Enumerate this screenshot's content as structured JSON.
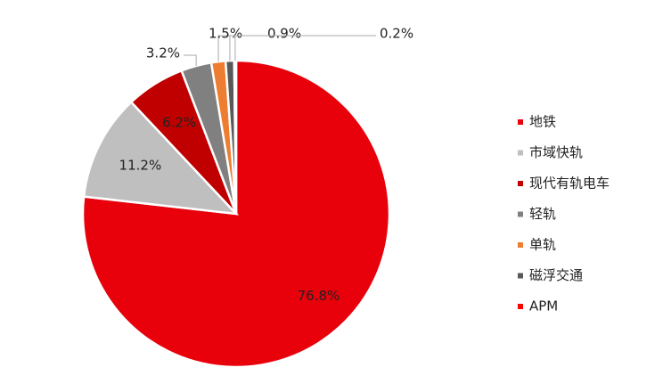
{
  "chart_data": {
    "type": "pie",
    "categories": [
      "地铁",
      "市域快轨",
      "现代有轨电车",
      "轻轨",
      "单轨",
      "磁浮交通",
      "APM"
    ],
    "values": [
      76.8,
      11.2,
      6.2,
      3.2,
      1.5,
      0.9,
      0.2
    ],
    "value_labels": [
      "76.8%",
      "11.2%",
      "6.2%",
      "3.2%",
      "1.5%",
      "0.9%",
      "0.2%"
    ],
    "colors": [
      "#e8000b",
      "#bfbfbf",
      "#c00000",
      "#808080",
      "#ed7d31",
      "#595959",
      "#ff0000"
    ],
    "legend": "right"
  }
}
